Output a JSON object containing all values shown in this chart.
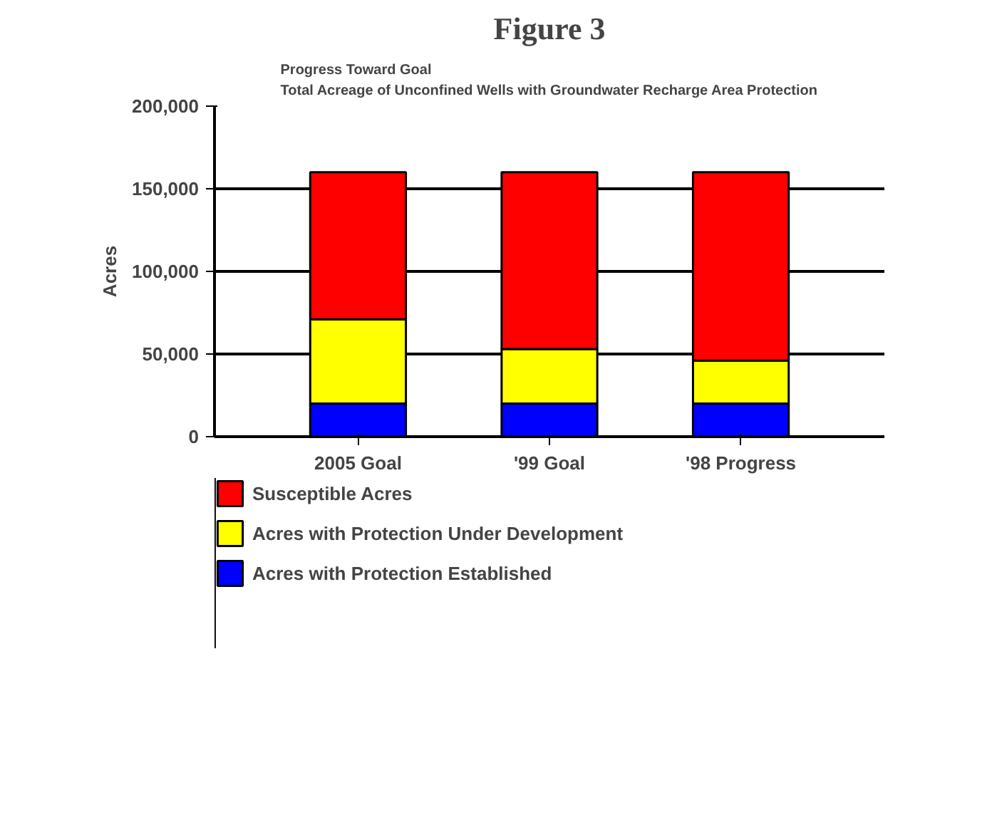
{
  "chart_data": {
    "type": "bar",
    "title": "Figure 3",
    "subtitle": "Progress Toward Goal\nTotal Acreage of Unconfined Wells with Groundwater Recharge Area Protection",
    "ylabel": "Acres",
    "categories": [
      "2005 Goal",
      "'99 Goal",
      "'98 Progress"
    ],
    "stacked": true,
    "series": [
      {
        "name": "Acres with Protection Established",
        "color": "#0000ff",
        "values": [
          20000,
          20000,
          20000
        ]
      },
      {
        "name": "Acres with Protection Under Development",
        "color": "#ffff00",
        "values": [
          51000,
          33000,
          26000
        ]
      },
      {
        "name": "Susceptible Acres",
        "color": "#ff0000",
        "values": [
          89000,
          107000,
          114000
        ]
      }
    ],
    "ylim": [
      0,
      200000
    ],
    "yticks": [
      {
        "value": 0,
        "label": "0"
      },
      {
        "value": 50000,
        "label": "50,000"
      },
      {
        "value": 100000,
        "label": "100,000"
      },
      {
        "value": 150000,
        "label": "150,000"
      },
      {
        "value": 200000,
        "label": "200,000"
      }
    ],
    "grid": "y",
    "legend": "bottom"
  }
}
